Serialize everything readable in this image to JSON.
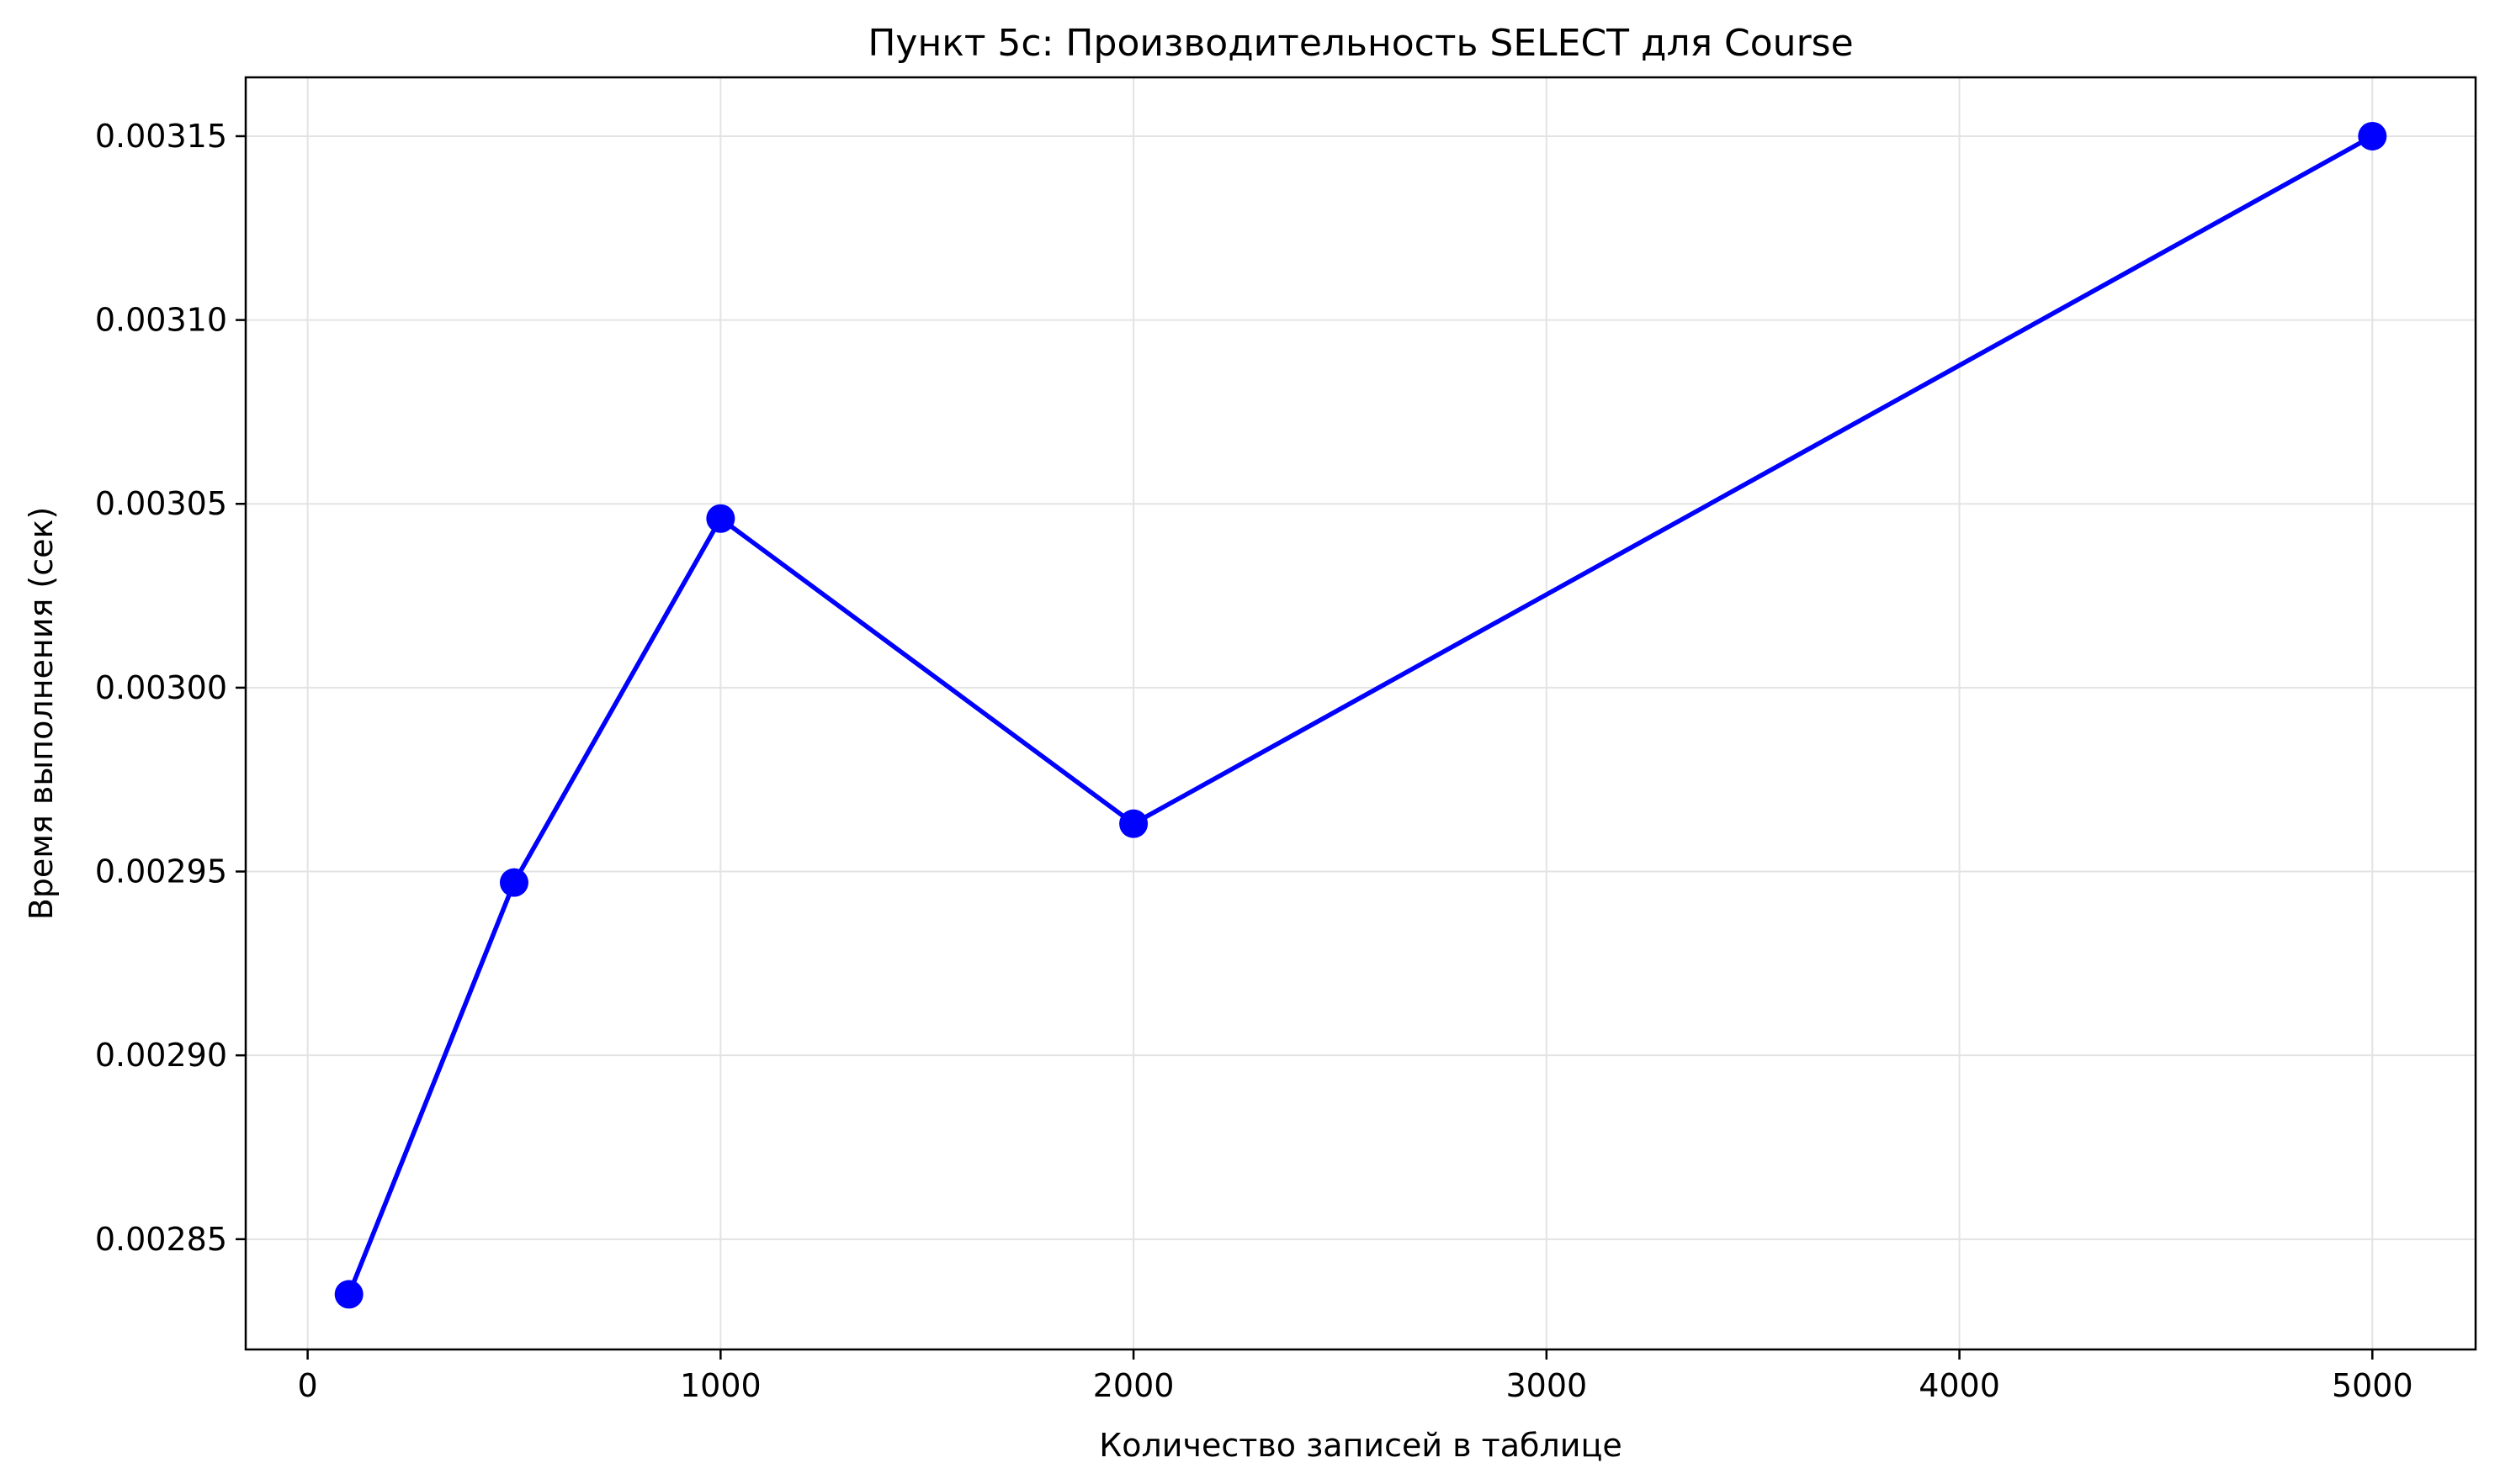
{
  "chart_data": {
    "type": "line",
    "title": "Пункт 5с: Производительность SELECT для Course",
    "xlabel": "Количество записей в таблице",
    "ylabel": "Время выполнения (сек)",
    "xlim": [
      -150,
      5250
    ],
    "ylim": [
      0.00282,
      0.003166
    ],
    "xticks": [
      0,
      1000,
      2000,
      3000,
      4000,
      5000
    ],
    "xtick_labels": [
      "0",
      "1000",
      "2000",
      "3000",
      "4000",
      "5000"
    ],
    "yticks": [
      0.00285,
      0.0029,
      0.00295,
      0.003,
      0.00305,
      0.0031,
      0.00315
    ],
    "ytick_labels": [
      "0.00285",
      "0.00290",
      "0.00295",
      "0.00300",
      "0.00305",
      "0.00310",
      "0.00315"
    ],
    "grid": true,
    "series": [
      {
        "color": "#0000ff",
        "x": [
          100,
          500,
          1000,
          2000,
          5000
        ],
        "y": [
          0.002835,
          0.002947,
          0.003046,
          0.002963,
          0.00315
        ]
      }
    ]
  }
}
